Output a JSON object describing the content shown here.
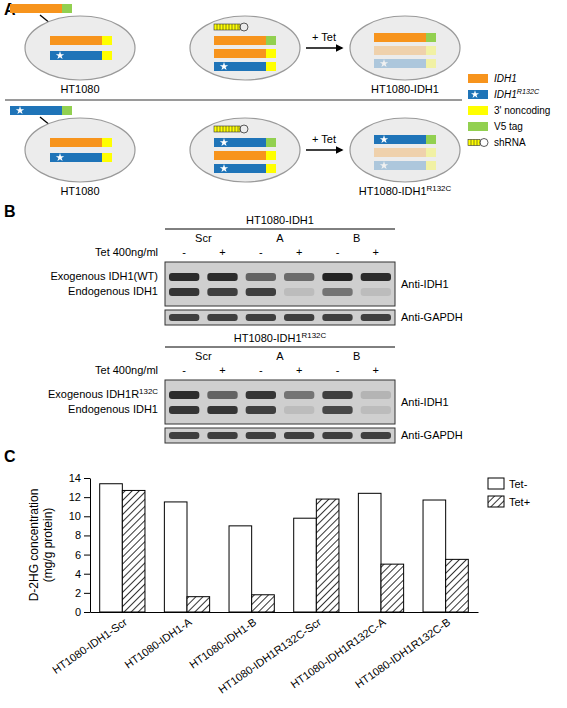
{
  "panel_labels": [
    "A",
    "B",
    "C"
  ],
  "panel_a": {
    "rows": [
      {
        "parent": "HT1080",
        "treatment": "+ Tet",
        "result": {
          "text": "HT1080-IDH1"
        }
      },
      {
        "parent": "HT1080",
        "treatment": "+ Tet",
        "result": {
          "text": "HT1080-IDH1",
          "sup": "R132C"
        }
      }
    ],
    "legend": [
      {
        "text": "IDH1"
      },
      {
        "text": "IDH1",
        "sup": "R132C"
      },
      {
        "text": "3' noncoding"
      },
      {
        "text": "V5 tag"
      },
      {
        "text": "shRNA"
      }
    ]
  },
  "panel_b": {
    "blots": [
      {
        "title": {
          "text": "HT1080-IDH1"
        },
        "treatment": "Tet 400ng/ml",
        "groups": [
          "Scr",
          "A",
          "B"
        ],
        "conditions": [
          "-",
          "+",
          "-",
          "+",
          "-",
          "+"
        ],
        "bands": [
          {
            "label": {
              "text": "Exogenous IDH1(WT)"
            },
            "intensity": [
              0.9,
              0.9,
              0.6,
              0.55,
              0.95,
              0.9
            ]
          },
          {
            "label": {
              "text": "Endogenous IDH1"
            },
            "intensity": [
              0.85,
              0.8,
              0.8,
              0.1,
              0.5,
              0.1
            ]
          }
        ],
        "antibodies": [
          "Anti-IDH1",
          "Anti-GAPDH"
        ],
        "loading": [
          0.8,
          0.8,
          0.8,
          0.8,
          0.8,
          0.8
        ]
      },
      {
        "title": {
          "text": "HT1080-IDH1",
          "sup": "R132C"
        },
        "treatment": "Tet 400ng/ml",
        "groups": [
          "Scr",
          "A",
          "B"
        ],
        "conditions": [
          "-",
          "+",
          "-",
          "+",
          "-",
          "+"
        ],
        "bands": [
          {
            "label": {
              "text": "Exogenous IDH1R",
              "sup": "132C"
            },
            "intensity": [
              0.9,
              0.6,
              0.85,
              0.5,
              0.8,
              0.15
            ]
          },
          {
            "label": {
              "text": "Endogenous IDH1"
            },
            "intensity": [
              0.85,
              0.85,
              0.8,
              0.1,
              0.75,
              0.1
            ]
          }
        ],
        "antibodies": [
          "Anti-IDH1",
          "Anti-GAPDH"
        ],
        "loading": [
          0.8,
          0.8,
          0.8,
          0.8,
          0.8,
          0.8
        ]
      }
    ]
  },
  "chart_data": {
    "type": "bar",
    "ylabel": [
      "D-2HG concentration",
      "(mg/g protein)"
    ],
    "categories": [
      "HT1080-IDH1-Scr",
      "HT1080-IDH1-A",
      "HT1080-IDH1-B",
      "HT1080-IDH1R132C-Scr",
      "HT1080-IDH1R132C-A",
      "HT1080-IDH1R132C-B"
    ],
    "series": [
      {
        "name": "Tet-",
        "color": "#ffffff",
        "line_style": "solid",
        "values": [
          13.4,
          11.5,
          9.0,
          9.8,
          12.4,
          11.7
        ]
      },
      {
        "name": "Tet+",
        "color": "#ffffff",
        "line_style": "hatched",
        "values": [
          12.7,
          1.6,
          1.8,
          11.8,
          5.0,
          5.5
        ]
      }
    ],
    "ylim": [
      0,
      14
    ],
    "yticks": [
      0,
      2,
      4,
      6,
      8,
      10,
      12,
      14
    ],
    "legend": "top-right"
  }
}
